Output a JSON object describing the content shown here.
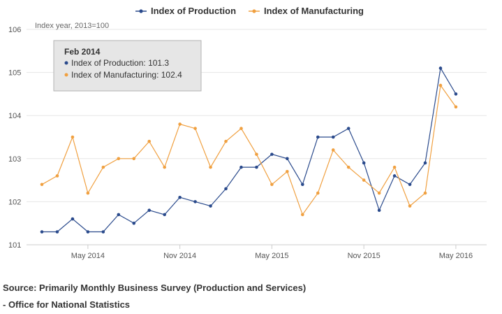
{
  "chart_data": {
    "type": "line",
    "ylabel": "Index year, 2013=100",
    "ylim": [
      101,
      106
    ],
    "yticks": [
      "101",
      "102",
      "103",
      "104",
      "105",
      "106"
    ],
    "x": [
      "Feb 2014",
      "Mar 2014",
      "Apr 2014",
      "May 2014",
      "Jun 2014",
      "Jul 2014",
      "Aug 2014",
      "Sep 2014",
      "Oct 2014",
      "Nov 2014",
      "Dec 2014",
      "Jan 2015",
      "Feb 2015",
      "Mar 2015",
      "Apr 2015",
      "May 2015",
      "Jun 2015",
      "Jul 2015",
      "Aug 2015",
      "Sep 2015",
      "Oct 2015",
      "Nov 2015",
      "Dec 2015",
      "Jan 2016",
      "Feb 2016",
      "Mar 2016",
      "Apr 2016",
      "May 2016"
    ],
    "xtick_labels": [
      {
        "index": 3,
        "label": "May 2014"
      },
      {
        "index": 9,
        "label": "Nov 2014"
      },
      {
        "index": 15,
        "label": "May 2015"
      },
      {
        "index": 21,
        "label": "Nov 2015"
      },
      {
        "index": 27,
        "label": "May 2016"
      }
    ],
    "series": [
      {
        "name": "Index of Production",
        "color": "#2a4a8c",
        "values": [
          101.3,
          101.3,
          101.6,
          101.3,
          101.3,
          101.7,
          101.5,
          101.8,
          101.7,
          102.1,
          102.0,
          101.9,
          102.3,
          102.8,
          102.8,
          103.1,
          103.0,
          102.4,
          103.5,
          103.5,
          103.7,
          102.9,
          101.8,
          102.6,
          102.4,
          102.9,
          105.1,
          104.5
        ]
      },
      {
        "name": "Index of Manufacturing",
        "color": "#f0a040",
        "values": [
          102.4,
          102.6,
          103.5,
          102.2,
          102.8,
          103.0,
          103.0,
          103.4,
          102.8,
          103.8,
          103.7,
          102.8,
          103.4,
          103.7,
          103.1,
          102.4,
          102.7,
          101.7,
          102.2,
          103.2,
          102.8,
          102.5,
          102.2,
          102.8,
          101.9,
          102.2,
          104.7,
          104.2
        ]
      }
    ],
    "legend_position": "top",
    "grid": true,
    "tooltip": {
      "title": "Feb 2014",
      "rows": [
        "Index of Production: 101.3",
        "Index of Manufacturing: 102.4"
      ]
    }
  },
  "source": {
    "line1": "Source: Primarily Monthly Business Survey (Production and Services)",
    "line2": "- Office for National Statistics"
  }
}
